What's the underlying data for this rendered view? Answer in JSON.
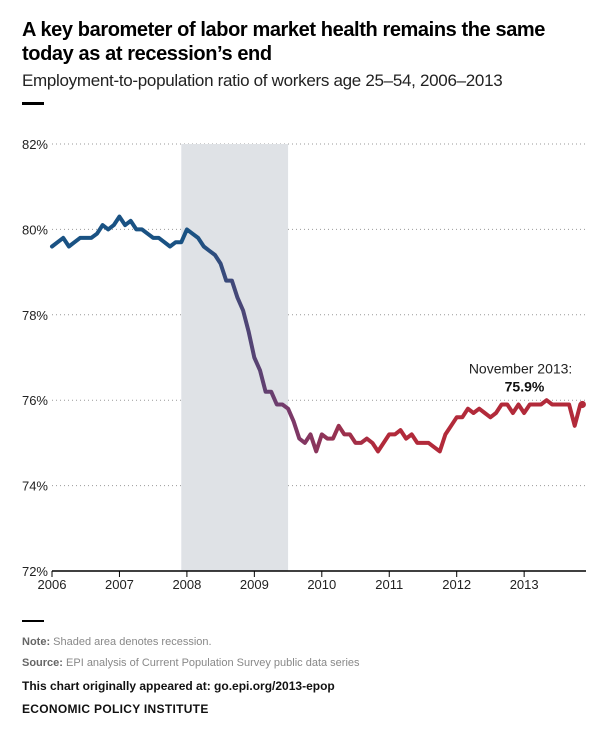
{
  "chart_data": {
    "type": "line",
    "title": "A key barometer of labor market health remains the same today as at recession’s end",
    "subtitle": "Employment-to-population ratio of workers age 25–54, 2006–2013",
    "xlabel": "",
    "ylabel": "",
    "x_ticks": [
      "2006",
      "2007",
      "2008",
      "2009",
      "2010",
      "2011",
      "2012",
      "2013"
    ],
    "y_ticks": [
      "72%",
      "74%",
      "76%",
      "78%",
      "80%",
      "82%"
    ],
    "xlim": [
      2006,
      2013.917
    ],
    "ylim": [
      72,
      82
    ],
    "grid": "horizontal dotted",
    "recession_shade": [
      2007.917,
      2009.5
    ],
    "annotation": {
      "label": "November 2013:",
      "value": "75.9%"
    },
    "series": [
      {
        "x_start": 2006,
        "x_step": 0.08333,
        "colors": {
          "start": "#1a5283",
          "end": "#b22a3a"
        },
        "values": [
          79.6,
          79.7,
          79.8,
          79.6,
          79.7,
          79.8,
          79.8,
          79.8,
          79.9,
          80.1,
          80.0,
          80.1,
          80.3,
          80.1,
          80.2,
          80.0,
          80.0,
          79.9,
          79.8,
          79.8,
          79.7,
          79.6,
          79.7,
          79.7,
          80.0,
          79.9,
          79.8,
          79.6,
          79.5,
          79.4,
          79.2,
          78.8,
          78.8,
          78.4,
          78.1,
          77.6,
          77.0,
          76.7,
          76.2,
          76.2,
          75.9,
          75.9,
          75.8,
          75.5,
          75.1,
          75.0,
          75.2,
          74.8,
          75.2,
          75.1,
          75.1,
          75.4,
          75.2,
          75.2,
          75.0,
          75.0,
          75.1,
          75.0,
          74.8,
          75.0,
          75.2,
          75.2,
          75.3,
          75.1,
          75.2,
          75.0,
          75.0,
          75.0,
          74.9,
          74.8,
          75.2,
          75.4,
          75.6,
          75.6,
          75.8,
          75.7,
          75.8,
          75.7,
          75.6,
          75.7,
          75.9,
          75.9,
          75.7,
          75.9,
          75.7,
          75.9,
          75.9,
          75.9,
          76.0,
          75.9,
          75.9,
          75.9,
          75.9,
          75.4,
          75.9
        ]
      }
    ]
  },
  "notes": {
    "note_label": "Note:",
    "note_text": "Shaded area denotes recession.",
    "source_label": "Source:",
    "source_text": "EPI analysis of Current Population Survey public data series"
  },
  "footer": {
    "originally": "This chart originally appeared at: go.epi.org/2013-epop",
    "institute": "ECONOMIC POLICY INSTITUTE"
  }
}
